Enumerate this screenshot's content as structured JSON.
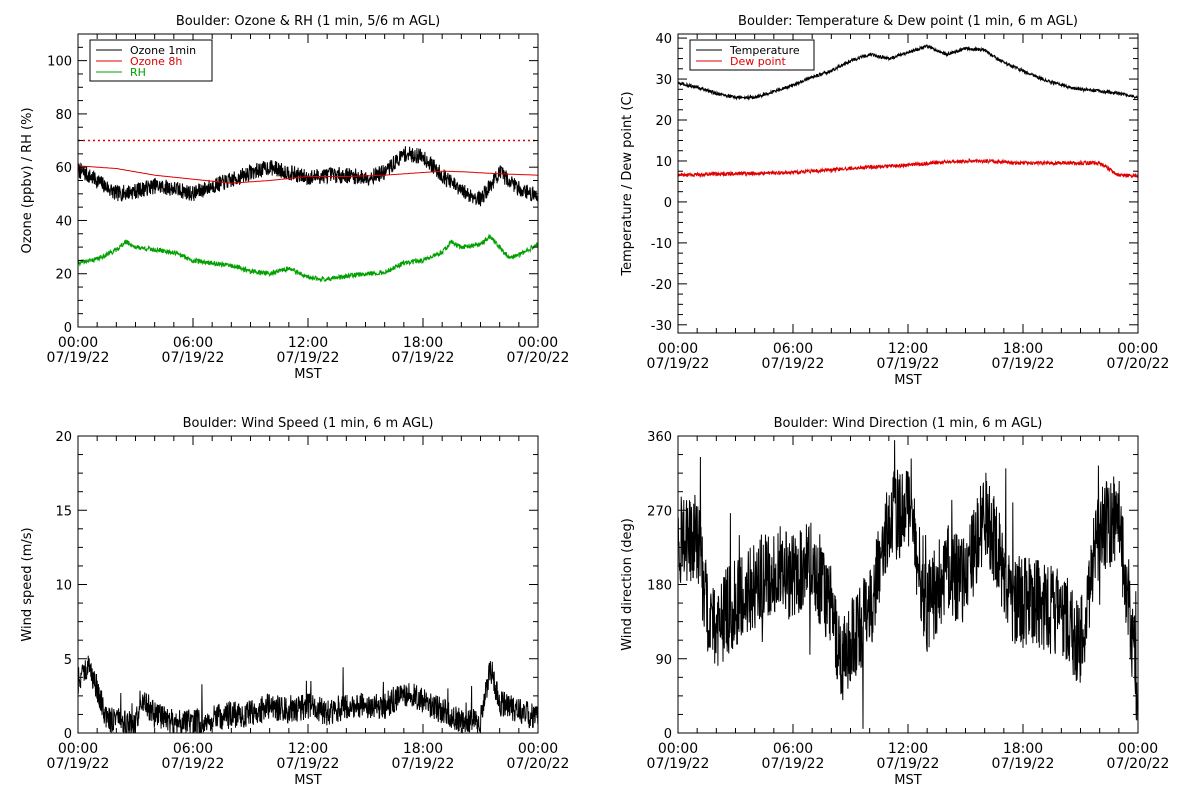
{
  "chart_data": [
    {
      "type": "line",
      "title": "Boulder: Ozone & RH (1 min, 5/6 m AGL)",
      "xlabel": "MST",
      "ylabel": "Ozone (ppbv) / RH (%)",
      "ylim": [
        0,
        110
      ],
      "yticks": [
        0,
        20,
        40,
        60,
        80,
        100
      ],
      "xticks": [
        {
          "time": "00:00",
          "date": "07/19/22",
          "hour": 0
        },
        {
          "time": "06:00",
          "date": "07/19/22",
          "hour": 6
        },
        {
          "time": "12:00",
          "date": "07/19/22",
          "hour": 12
        },
        {
          "time": "18:00",
          "date": "07/19/22",
          "hour": 18
        },
        {
          "time": "00:00",
          "date": "07/20/22",
          "hour": 24
        }
      ],
      "legend_position": "top-left",
      "reference_line": {
        "y": 70,
        "color": "#e00000",
        "style": "dotted"
      },
      "series": [
        {
          "name": "Ozone 1min",
          "color": "#000000",
          "noise": 3.0,
          "points": [
            [
              0,
              59
            ],
            [
              1,
              55
            ],
            [
              2,
              50
            ],
            [
              3,
              51
            ],
            [
              4,
              53
            ],
            [
              5,
              52
            ],
            [
              6,
              50
            ],
            [
              7,
              53
            ],
            [
              8,
              55
            ],
            [
              9,
              58
            ],
            [
              10,
              60
            ],
            [
              11,
              58
            ],
            [
              12,
              56
            ],
            [
              13,
              57
            ],
            [
              14,
              57
            ],
            [
              15,
              56
            ],
            [
              16,
              58
            ],
            [
              17,
              65
            ],
            [
              18,
              64
            ],
            [
              19,
              57
            ],
            [
              20,
              51
            ],
            [
              21,
              48
            ],
            [
              22,
              58
            ],
            [
              23,
              52
            ],
            [
              24,
              49
            ]
          ]
        },
        {
          "name": "Ozone 8h",
          "color": "#e00000",
          "noise": 0,
          "points": [
            [
              0,
              60.5
            ],
            [
              2,
              59.5
            ],
            [
              4,
              57
            ],
            [
              6,
              55.5
            ],
            [
              8,
              54
            ],
            [
              10,
              55
            ],
            [
              12,
              56.5
            ],
            [
              14,
              56.5
            ],
            [
              16,
              57
            ],
            [
              18,
              58
            ],
            [
              19,
              58.5
            ],
            [
              20,
              58.3
            ],
            [
              22,
              57.5
            ],
            [
              24,
              57
            ]
          ]
        },
        {
          "name": "RH",
          "color": "#00a000",
          "noise": 0.9,
          "points": [
            [
              0,
              24
            ],
            [
              1,
              25.5
            ],
            [
              2,
              29
            ],
            [
              2.5,
              32
            ],
            [
              3,
              30
            ],
            [
              4,
              29
            ],
            [
              5,
              28
            ],
            [
              6,
              25
            ],
            [
              7,
              24
            ],
            [
              8,
              23
            ],
            [
              9,
              21
            ],
            [
              10,
              20
            ],
            [
              11,
              22
            ],
            [
              12,
              18.5
            ],
            [
              13,
              18
            ],
            [
              14,
              19
            ],
            [
              15,
              20
            ],
            [
              16,
              20.5
            ],
            [
              17,
              24
            ],
            [
              18,
              25
            ],
            [
              19,
              28
            ],
            [
              19.5,
              32
            ],
            [
              20,
              30
            ],
            [
              21,
              31
            ],
            [
              21.5,
              34
            ],
            [
              22,
              30
            ],
            [
              22.5,
              26
            ],
            [
              23,
              27
            ],
            [
              24,
              31
            ]
          ]
        }
      ]
    },
    {
      "type": "line",
      "title": "Boulder: Temperature & Dew point (1 min, 6 m AGL)",
      "xlabel": "MST",
      "ylabel": "Temperature / Dew point (C)",
      "ylim": [
        -32,
        41
      ],
      "yticks": [
        -30,
        -20,
        -10,
        0,
        10,
        20,
        30,
        40
      ],
      "xticks": [
        {
          "time": "00:00",
          "date": "07/19/22",
          "hour": 0
        },
        {
          "time": "06:00",
          "date": "07/19/22",
          "hour": 6
        },
        {
          "time": "12:00",
          "date": "07/19/22",
          "hour": 12
        },
        {
          "time": "18:00",
          "date": "07/19/22",
          "hour": 18
        },
        {
          "time": "00:00",
          "date": "07/20/22",
          "hour": 24
        }
      ],
      "legend_position": "top-left",
      "series": [
        {
          "name": "Temperature",
          "color": "#000000",
          "noise": 0.4,
          "points": [
            [
              0,
              29
            ],
            [
              1,
              28
            ],
            [
              2,
              26.5
            ],
            [
              3,
              25.5
            ],
            [
              4,
              25.5
            ],
            [
              5,
              27
            ],
            [
              6,
              28.5
            ],
            [
              7,
              30.5
            ],
            [
              8,
              32
            ],
            [
              9,
              34.5
            ],
            [
              10,
              36
            ],
            [
              11,
              35
            ],
            [
              12,
              36.5
            ],
            [
              13,
              38
            ],
            [
              14,
              36
            ],
            [
              15,
              37.5
            ],
            [
              16,
              37
            ],
            [
              17,
              34
            ],
            [
              18,
              32
            ],
            [
              19,
              30
            ],
            [
              20,
              28.5
            ],
            [
              21,
              27.5
            ],
            [
              22,
              27
            ],
            [
              23,
              26.5
            ],
            [
              24,
              25.5
            ]
          ]
        },
        {
          "name": "Dew point",
          "color": "#e00000",
          "noise": 0.45,
          "points": [
            [
              0,
              6.5
            ],
            [
              2,
              6.8
            ],
            [
              4,
              7
            ],
            [
              6,
              7.2
            ],
            [
              8,
              7.8
            ],
            [
              10,
              8.5
            ],
            [
              12,
              9
            ],
            [
              14,
              9.8
            ],
            [
              16,
              10
            ],
            [
              18,
              9.5
            ],
            [
              20,
              9.5
            ],
            [
              22,
              9.5
            ],
            [
              22.5,
              8
            ],
            [
              23,
              6.5
            ],
            [
              24,
              6.5
            ]
          ]
        }
      ]
    },
    {
      "type": "line",
      "title": "Boulder: Wind Speed (1 min, 6 m AGL)",
      "xlabel": "MST",
      "ylabel": "Wind speed (m/s)",
      "ylim": [
        0,
        20
      ],
      "yticks": [
        0,
        5,
        10,
        15,
        20
      ],
      "xticks": [
        {
          "time": "00:00",
          "date": "07/19/22",
          "hour": 0
        },
        {
          "time": "06:00",
          "date": "07/19/22",
          "hour": 6
        },
        {
          "time": "12:00",
          "date": "07/19/22",
          "hour": 12
        },
        {
          "time": "18:00",
          "date": "07/19/22",
          "hour": 18
        },
        {
          "time": "00:00",
          "date": "07/20/22",
          "hour": 24
        }
      ],
      "series": [
        {
          "name": "",
          "color": "#000000",
          "noise": 0.9,
          "min": 0,
          "points": [
            [
              0,
              3.5
            ],
            [
              0.5,
              4.5
            ],
            [
              1,
              3
            ],
            [
              1.5,
              1
            ],
            [
              2,
              0.8
            ],
            [
              3,
              0.5
            ],
            [
              3.3,
              2.5
            ],
            [
              4,
              1.2
            ],
            [
              5,
              0.8
            ],
            [
              6,
              0.7
            ],
            [
              7,
              1
            ],
            [
              8,
              1.2
            ],
            [
              9,
              1.3
            ],
            [
              10,
              1.8
            ],
            [
              11,
              1.5
            ],
            [
              12,
              1.8
            ],
            [
              13,
              1.4
            ],
            [
              14,
              1.8
            ],
            [
              15,
              1.9
            ],
            [
              16,
              1.8
            ],
            [
              17,
              2.7
            ],
            [
              18,
              2.2
            ],
            [
              19,
              1.5
            ],
            [
              20,
              0.8
            ],
            [
              21,
              0.8
            ],
            [
              21.5,
              4.5
            ],
            [
              22,
              2
            ],
            [
              23,
              1.5
            ],
            [
              24,
              1
            ]
          ]
        }
      ]
    },
    {
      "type": "line",
      "title": "Boulder: Wind Direction (1 min, 6 m AGL)",
      "xlabel": "MST",
      "ylabel": "Wind direction (deg)",
      "ylim": [
        0,
        360
      ],
      "yticks": [
        0,
        90,
        180,
        270,
        360
      ],
      "xticks": [
        {
          "time": "00:00",
          "date": "07/19/22",
          "hour": 0
        },
        {
          "time": "06:00",
          "date": "07/19/22",
          "hour": 6
        },
        {
          "time": "12:00",
          "date": "07/19/22",
          "hour": 12
        },
        {
          "time": "18:00",
          "date": "07/19/22",
          "hour": 18
        },
        {
          "time": "00:00",
          "date": "07/20/22",
          "hour": 24
        }
      ],
      "series": [
        {
          "name": "",
          "color": "#000000",
          "noise": 55,
          "min": 5,
          "max": 355,
          "points": [
            [
              0,
              235
            ],
            [
              1,
              235
            ],
            [
              1.5,
              150
            ],
            [
              2,
              130
            ],
            [
              3,
              160
            ],
            [
              4,
              180
            ],
            [
              5,
              200
            ],
            [
              6,
              190
            ],
            [
              7,
              210
            ],
            [
              8,
              150
            ],
            [
              8.5,
              80
            ],
            [
              9,
              110
            ],
            [
              10,
              150
            ],
            [
              11,
              260
            ],
            [
              12,
              270
            ],
            [
              13,
              150
            ],
            [
              14,
              200
            ],
            [
              15,
              180
            ],
            [
              16,
              270
            ],
            [
              17,
              200
            ],
            [
              17.5,
              160
            ],
            [
              18,
              160
            ],
            [
              19,
              155
            ],
            [
              20,
              145
            ],
            [
              21,
              110
            ],
            [
              22,
              250
            ],
            [
              23,
              260
            ],
            [
              24,
              50
            ]
          ]
        }
      ]
    }
  ]
}
